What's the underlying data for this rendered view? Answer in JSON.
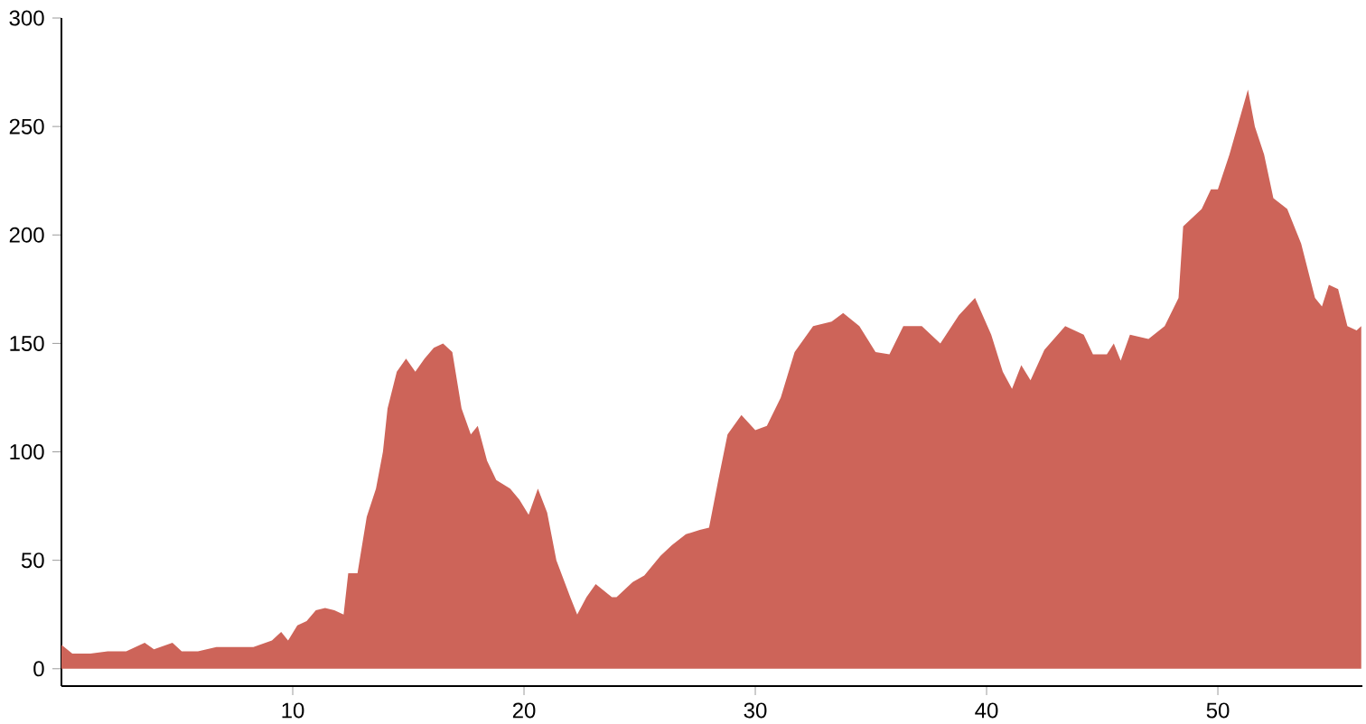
{
  "chart_data": {
    "type": "area",
    "color": "#cd6459",
    "x": [
      0,
      0.47,
      1.25,
      2,
      2.8,
      3.6,
      4,
      4.8,
      5.2,
      5.9,
      6.7,
      7.5,
      8.3,
      9.1,
      9.5,
      9.8,
      10.2,
      10.6,
      11,
      11.4,
      11.8,
      12.2,
      12.4,
      12.8,
      13.2,
      13.6,
      13.9,
      14.1,
      14.5,
      14.9,
      15.3,
      15.7,
      16.1,
      16.5,
      16.9,
      17.3,
      17.7,
      18,
      18.4,
      18.8,
      19.4,
      19.8,
      20.2,
      20.6,
      21,
      21.4,
      22,
      22.3,
      22.7,
      23.1,
      23.8,
      24,
      24.7,
      25.2,
      25.9,
      26.4,
      27,
      27.6,
      28,
      28.4,
      28.8,
      29.4,
      30,
      30.5,
      31.1,
      31.7,
      32.5,
      33.3,
      33.8,
      34.5,
      35.2,
      35.8,
      36.4,
      37.2,
      38,
      38.8,
      39.5,
      40.2,
      40.7,
      41.1,
      41.5,
      41.9,
      42.5,
      43.4,
      44.2,
      44.6,
      45.2,
      45.5,
      45.8,
      46.2,
      47,
      47.7,
      48.3,
      48.5,
      49.3,
      49.7,
      50,
      50.5,
      51.3,
      51.6,
      52,
      52.4,
      53,
      53.6,
      54.2,
      54.5,
      54.8,
      55.2,
      55.6,
      56,
      56.2
    ],
    "values": [
      11,
      7,
      7,
      8,
      8,
      12,
      9,
      12,
      8,
      8,
      10,
      10,
      10,
      13,
      17,
      13,
      20,
      22,
      27,
      28,
      27,
      25,
      44,
      44,
      70,
      83,
      100,
      120,
      137,
      143,
      137,
      143,
      148,
      150,
      146,
      120,
      108,
      112,
      96,
      87,
      83,
      78,
      71,
      83,
      72,
      50,
      33,
      25,
      33,
      39,
      33,
      33,
      40,
      43,
      52,
      57,
      62,
      64,
      65,
      87,
      108,
      117,
      110,
      112,
      125,
      146,
      158,
      160,
      164,
      158,
      146,
      145,
      158,
      158,
      150,
      163,
      171,
      154,
      137,
      129,
      140,
      133,
      147,
      158,
      154,
      145,
      145,
      150,
      142,
      154,
      152,
      158,
      171,
      204,
      212,
      221,
      221,
      237,
      267,
      250,
      237,
      217,
      212,
      196,
      171,
      167,
      177,
      175,
      158,
      156,
      158
    ],
    "xlim": [
      0,
      56.25
    ],
    "ylim": [
      -8,
      300
    ],
    "xticks": [
      10,
      20,
      30,
      40,
      50
    ],
    "yticks": [
      0,
      50,
      100,
      150,
      200,
      250,
      300
    ]
  }
}
